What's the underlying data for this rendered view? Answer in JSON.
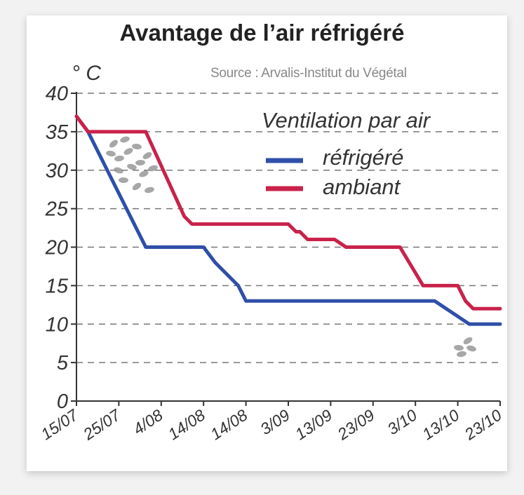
{
  "chart_data": {
    "type": "line",
    "title": "Avantage de l’air réfrigéré",
    "source": "Source : Arvalis-Institut du Végétal",
    "ylabel": "° C",
    "ylim": [
      0,
      40
    ],
    "yticks": [
      0,
      5,
      10,
      15,
      20,
      25,
      30,
      35,
      40
    ],
    "xlim": [
      0,
      110
    ],
    "xtick_labels": [
      "15/07",
      "25/07",
      "4/08",
      "14/08",
      "14/08",
      "3/09",
      "13/09",
      "23/09",
      "3/10",
      "13/10",
      "23/10"
    ],
    "grid": "horizontal dashed",
    "legend_title": "Ventilation par air",
    "legend_position": "top-right",
    "series": [
      {
        "name": "réfrigéré",
        "color": "#2f4fa8",
        "x": [
          0,
          3,
          8,
          17,
          18,
          33,
          36,
          40,
          41,
          42,
          44,
          47,
          50,
          93,
          102,
          103,
          110
        ],
        "y": [
          37,
          35,
          30,
          21,
          20,
          20,
          18,
          16,
          15.5,
          15,
          13,
          13,
          13,
          13,
          10,
          10,
          10
        ]
      },
      {
        "name": "ambiant",
        "color": "#c9224a",
        "x": [
          0,
          3,
          18,
          28,
          30,
          55,
          57,
          58,
          60,
          62,
          67,
          70,
          78,
          81,
          84,
          90,
          91,
          95,
          99,
          101,
          103,
          110
        ],
        "y": [
          37,
          35,
          35,
          24,
          23,
          23,
          22,
          22,
          21,
          21,
          21,
          20,
          20,
          20,
          20,
          15,
          15,
          15,
          15,
          13,
          12,
          12
        ]
      }
    ]
  }
}
